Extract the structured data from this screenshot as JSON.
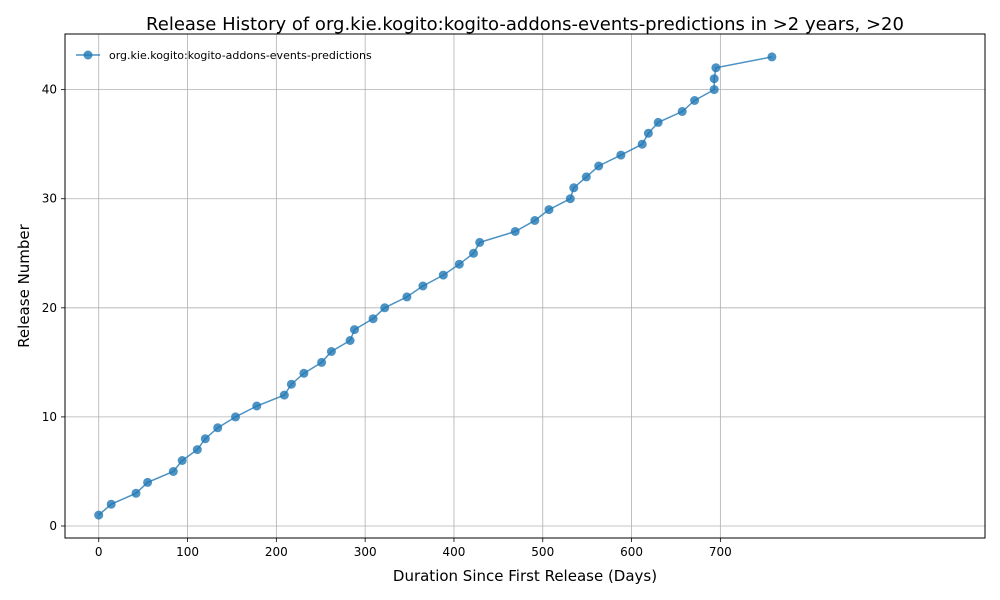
{
  "chart_data": {
    "type": "line",
    "title": "Release History of org.kie.kogito:kogito-addons-events-predictions in >2 years, >20",
    "xlabel": "Duration Since First Release (Days)",
    "ylabel": "Release Number",
    "xlim": [
      -38,
      998
    ],
    "ylim": [
      -1.1,
      45.1
    ],
    "xticks": [
      0,
      100,
      200,
      300,
      400,
      500,
      600,
      700
    ],
    "yticks": [
      0,
      10,
      20,
      30,
      40
    ],
    "grid": true,
    "legend": "top-left",
    "series": [
      {
        "name": "org.kie.kogito:kogito-addons-events-predictions",
        "color": "#1f77b4",
        "marker": "circle",
        "points": [
          [
            0,
            1
          ],
          [
            14,
            2
          ],
          [
            42,
            3
          ],
          [
            55,
            4
          ],
          [
            84,
            5
          ],
          [
            94,
            6
          ],
          [
            111,
            7
          ],
          [
            120,
            8
          ],
          [
            134,
            9
          ],
          [
            154,
            10
          ],
          [
            178,
            11
          ],
          [
            209,
            12
          ],
          [
            217,
            13
          ],
          [
            231,
            14
          ],
          [
            251,
            15
          ],
          [
            262,
            16
          ],
          [
            283,
            17
          ],
          [
            288,
            18
          ],
          [
            309,
            19
          ],
          [
            322,
            20
          ],
          [
            347,
            21
          ],
          [
            365,
            22
          ],
          [
            388,
            23
          ],
          [
            406,
            24
          ],
          [
            422,
            25
          ],
          [
            429,
            26
          ],
          [
            469,
            27
          ],
          [
            491,
            28
          ],
          [
            507,
            29
          ],
          [
            531,
            30
          ],
          [
            535,
            31
          ],
          [
            549,
            32
          ],
          [
            563,
            33
          ],
          [
            588,
            34
          ],
          [
            612,
            35
          ],
          [
            619,
            36
          ],
          [
            630,
            37
          ],
          [
            657,
            38
          ],
          [
            671,
            39
          ],
          [
            693,
            40
          ],
          [
            693,
            41
          ],
          [
            695,
            42
          ],
          [
            758,
            43
          ]
        ]
      }
    ]
  }
}
